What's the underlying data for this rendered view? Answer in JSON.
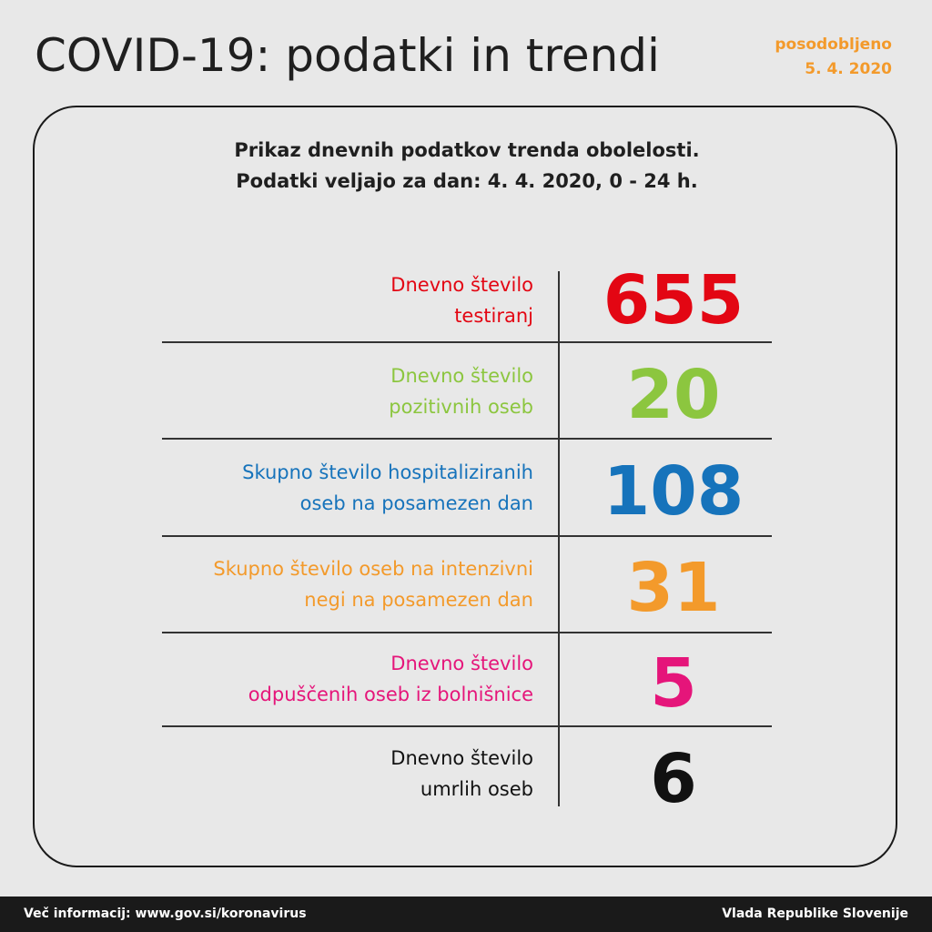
{
  "header": {
    "title": "COVID-19: podatki in trendi",
    "updated_label": "posodobljeno",
    "updated_date": "5. 4. 2020",
    "updated_color": "#f39a2b"
  },
  "subtitle": {
    "line1": "Prikaz dnevnih podatkov trenda obolelosti.",
    "line2": "Podatki veljajo za dan: 4. 4. 2020, 0 - 24 h."
  },
  "stats": [
    {
      "label_line1": "Dnevno število",
      "label_line2": "testiranj",
      "value": "655",
      "color": "#e30613"
    },
    {
      "label_line1": "Dnevno število",
      "label_line2": "pozitivnih oseb",
      "value": "20",
      "color": "#8cc63f"
    },
    {
      "label_line1": "Skupno število hospitaliziranih",
      "label_line2": "oseb na posamezen dan",
      "value": "108",
      "color": "#1673bb"
    },
    {
      "label_line1": "Skupno število oseb na intenzivni",
      "label_line2": "negi na posamezen dan",
      "value": "31",
      "color": "#f39a2b"
    },
    {
      "label_line1": "Dnevno število",
      "label_line2": "odpuščenih oseb iz bolnišnice",
      "value": "5",
      "color": "#e5157a"
    },
    {
      "label_line1": "Dnevno število",
      "label_line2": "umrlih oseb",
      "value": "6",
      "color": "#111111"
    }
  ],
  "footer": {
    "more_info": "Več informacij: www.gov.si/koronavirus",
    "government": "Vlada Republike Slovenije"
  }
}
